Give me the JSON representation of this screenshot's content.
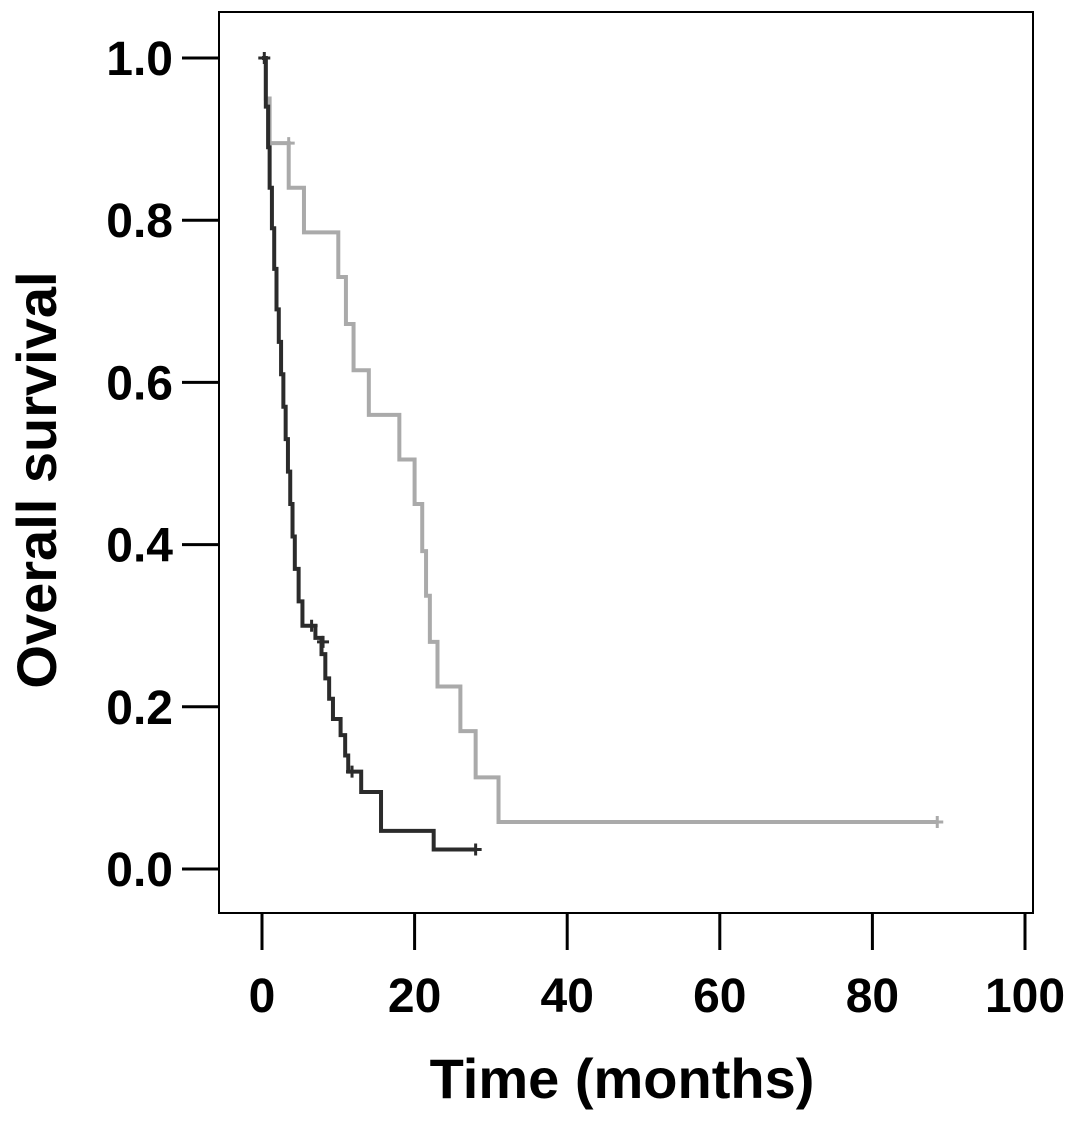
{
  "chart_data": {
    "type": "line",
    "step": true,
    "title": "",
    "xlabel": "Time (months)",
    "ylabel": "Overall survival",
    "xlim": [
      0,
      100
    ],
    "ylim": [
      0,
      1
    ],
    "xticks": [
      "0",
      "20",
      "40",
      "60",
      "80",
      "100"
    ],
    "yticks": [
      "0.0",
      "0.2",
      "0.4",
      "0.6",
      "0.8",
      "1.0"
    ],
    "grid": false,
    "legend": "none",
    "series": [
      {
        "color": "#aaaaaa",
        "points": [
          [
            0,
            1.0
          ],
          [
            0.5,
            0.95
          ],
          [
            1,
            0.895
          ],
          [
            3.5,
            0.84
          ],
          [
            5.5,
            0.785
          ],
          [
            10,
            0.73
          ],
          [
            11,
            0.672
          ],
          [
            12,
            0.615
          ],
          [
            14,
            0.56
          ],
          [
            18,
            0.505
          ],
          [
            20,
            0.45
          ],
          [
            21,
            0.392
          ],
          [
            21.5,
            0.337
          ],
          [
            22,
            0.28
          ],
          [
            23,
            0.225
          ],
          [
            26,
            0.17
          ],
          [
            28,
            0.113
          ],
          [
            31,
            0.058
          ],
          [
            88.5,
            0.058
          ]
        ],
        "censored": [
          [
            3.5,
            0.895
          ],
          [
            88.5,
            0.058
          ]
        ]
      },
      {
        "color": "#2b2b2b",
        "points": [
          [
            0,
            1.0
          ],
          [
            0.5,
            0.94
          ],
          [
            0.8,
            0.89
          ],
          [
            1.0,
            0.84
          ],
          [
            1.3,
            0.79
          ],
          [
            1.6,
            0.74
          ],
          [
            1.9,
            0.69
          ],
          [
            2.2,
            0.65
          ],
          [
            2.5,
            0.61
          ],
          [
            2.8,
            0.57
          ],
          [
            3.1,
            0.53
          ],
          [
            3.4,
            0.49
          ],
          [
            3.7,
            0.45
          ],
          [
            4.0,
            0.41
          ],
          [
            4.3,
            0.37
          ],
          [
            4.8,
            0.33
          ],
          [
            5.3,
            0.3
          ],
          [
            7.0,
            0.285
          ],
          [
            7.8,
            0.265
          ],
          [
            8.3,
            0.235
          ],
          [
            8.8,
            0.21
          ],
          [
            9.3,
            0.185
          ],
          [
            10.3,
            0.165
          ],
          [
            10.9,
            0.14
          ],
          [
            11.3,
            0.12
          ],
          [
            13.0,
            0.095
          ],
          [
            15.6,
            0.047
          ],
          [
            22.5,
            0.024
          ],
          [
            28.0,
            0.024
          ]
        ],
        "censored": [
          [
            0.3,
            1.0
          ],
          [
            6.5,
            0.3
          ],
          [
            8.0,
            0.28
          ],
          [
            11.8,
            0.12
          ],
          [
            28.0,
            0.024
          ]
        ]
      }
    ]
  }
}
